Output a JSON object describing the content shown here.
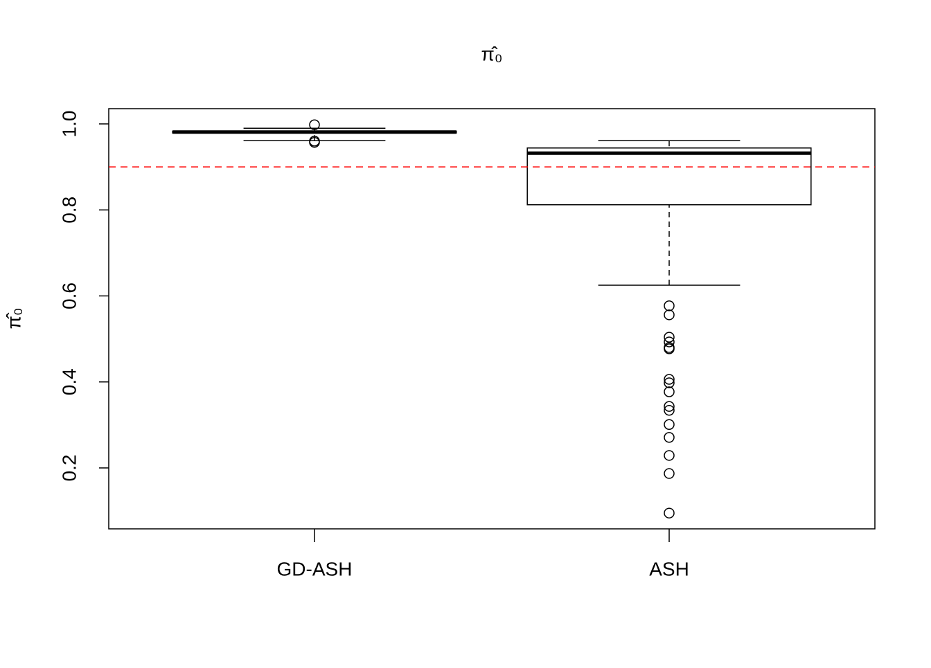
{
  "chart_data": {
    "type": "box",
    "title": "π̂₀",
    "y_label": "π̂₀",
    "categories": [
      "GD-ASH",
      "ASH"
    ],
    "boxes": [
      {
        "whislo": 0.961,
        "q1": 0.979,
        "med": 0.981,
        "q3": 0.983,
        "whishi": 0.99,
        "outliers": [
          0.998,
          0.96,
          0.957
        ]
      },
      {
        "whislo": 0.625,
        "q1": 0.812,
        "med": 0.932,
        "q3": 0.944,
        "whishi": 0.961,
        "outliers": [
          0.577,
          0.556,
          0.504,
          0.493,
          0.48,
          0.477,
          0.406,
          0.398,
          0.377,
          0.343,
          0.334,
          0.301,
          0.271,
          0.229,
          0.187,
          0.095
        ]
      }
    ],
    "ylim": [
      0.0583,
      1.0354
    ],
    "yticks": [
      0.2,
      0.4,
      0.6,
      0.8,
      {
        "value": 1,
        "label": "1.0"
      }
    ],
    "hline": {
      "value": 0.9,
      "color": "#ff0000",
      "style": "dashed"
    }
  }
}
